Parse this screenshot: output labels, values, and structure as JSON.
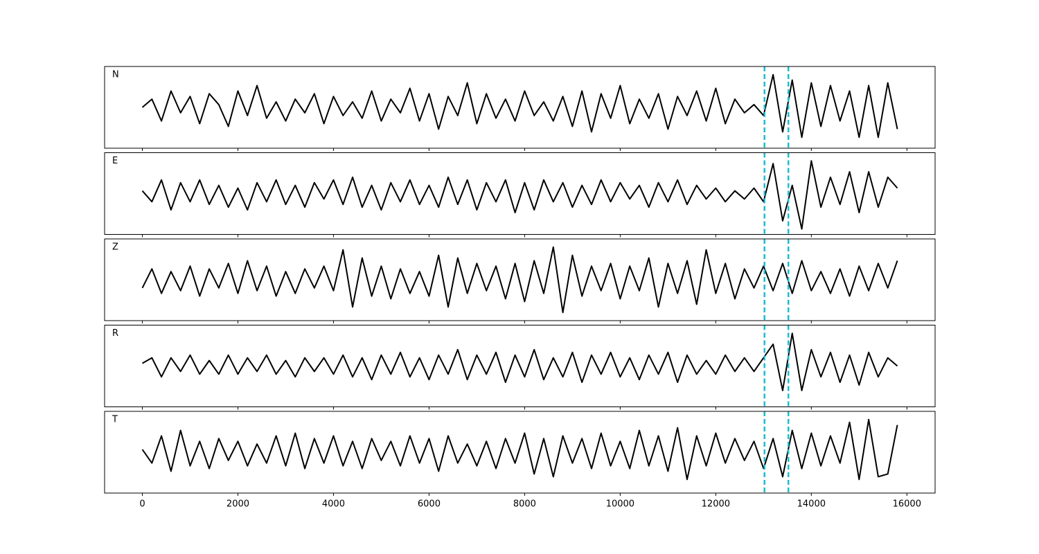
{
  "chart_data": {
    "type": "line",
    "subplots": true,
    "x": [
      0,
      200,
      400,
      600,
      800,
      1000,
      1200,
      1400,
      1600,
      1800,
      2000,
      2200,
      2400,
      2600,
      2800,
      3000,
      3200,
      3400,
      3600,
      3800,
      4000,
      4200,
      4400,
      4600,
      4800,
      5000,
      5200,
      5400,
      5600,
      5800,
      6000,
      6200,
      6400,
      6600,
      6800,
      7000,
      7200,
      7400,
      7600,
      7800,
      8000,
      8200,
      8400,
      8600,
      8800,
      9000,
      9200,
      9400,
      9600,
      9800,
      10000,
      10200,
      10400,
      10600,
      10800,
      11000,
      11200,
      11400,
      11600,
      11800,
      12000,
      12200,
      12400,
      12600,
      12800,
      13000,
      13200,
      13400,
      13600,
      13800,
      14000,
      14200,
      14400,
      14600,
      14800,
      15000,
      15200,
      15400,
      15600,
      15800
    ],
    "series": [
      {
        "name": "N",
        "color": "#000000",
        "values": [
          0.0,
          0.3,
          -0.5,
          0.6,
          -0.2,
          0.4,
          -0.6,
          0.5,
          0.1,
          -0.7,
          0.6,
          -0.3,
          0.8,
          -0.4,
          0.2,
          -0.5,
          0.3,
          -0.2,
          0.5,
          -0.6,
          0.4,
          -0.3,
          0.2,
          -0.4,
          0.6,
          -0.5,
          0.3,
          -0.2,
          0.7,
          -0.5,
          0.5,
          -0.8,
          0.4,
          -0.3,
          0.9,
          -0.6,
          0.5,
          -0.4,
          0.3,
          -0.5,
          0.6,
          -0.3,
          0.2,
          -0.5,
          0.4,
          -0.7,
          0.6,
          -0.9,
          0.5,
          -0.4,
          0.8,
          -0.6,
          0.3,
          -0.4,
          0.5,
          -0.8,
          0.4,
          -0.3,
          0.6,
          -0.5,
          0.7,
          -0.6,
          0.3,
          -0.2,
          0.1,
          -0.3,
          1.2,
          -0.9,
          1.0,
          -1.1,
          0.9,
          -0.7,
          0.8,
          -0.5,
          0.6,
          -1.1,
          0.8,
          -1.1,
          0.9,
          -0.8
        ]
      },
      {
        "name": "E",
        "color": "#000000",
        "values": [
          0.1,
          -0.3,
          0.5,
          -0.6,
          0.4,
          -0.3,
          0.5,
          -0.4,
          0.3,
          -0.5,
          0.2,
          -0.6,
          0.4,
          -0.3,
          0.5,
          -0.4,
          0.3,
          -0.5,
          0.4,
          -0.2,
          0.5,
          -0.4,
          0.6,
          -0.5,
          0.3,
          -0.6,
          0.4,
          -0.3,
          0.5,
          -0.4,
          0.3,
          -0.5,
          0.6,
          -0.4,
          0.5,
          -0.6,
          0.4,
          -0.3,
          0.5,
          -0.7,
          0.4,
          -0.6,
          0.5,
          -0.3,
          0.4,
          -0.5,
          0.3,
          -0.4,
          0.5,
          -0.3,
          0.4,
          -0.2,
          0.3,
          -0.5,
          0.4,
          -0.3,
          0.5,
          -0.4,
          0.3,
          -0.2,
          0.2,
          -0.3,
          0.1,
          -0.2,
          0.2,
          -0.3,
          1.1,
          -1.0,
          0.3,
          -1.3,
          1.2,
          -0.5,
          0.6,
          -0.4,
          0.8,
          -0.7,
          0.8,
          -0.5,
          0.6,
          0.2
        ]
      },
      {
        "name": "Z",
        "color": "#000000",
        "values": [
          -0.3,
          0.4,
          -0.5,
          0.3,
          -0.4,
          0.5,
          -0.6,
          0.4,
          -0.3,
          0.6,
          -0.5,
          0.7,
          -0.4,
          0.5,
          -0.6,
          0.3,
          -0.5,
          0.4,
          -0.3,
          0.5,
          -0.4,
          1.1,
          -1.0,
          0.8,
          -0.6,
          0.5,
          -0.7,
          0.4,
          -0.5,
          0.3,
          -0.6,
          0.9,
          -1.0,
          0.8,
          -0.5,
          0.6,
          -0.4,
          0.5,
          -0.7,
          0.6,
          -0.8,
          0.7,
          -0.5,
          1.2,
          -1.2,
          0.9,
          -0.6,
          0.5,
          -0.4,
          0.6,
          -0.7,
          0.5,
          -0.4,
          0.8,
          -1.0,
          0.6,
          -0.5,
          0.7,
          -0.9,
          1.1,
          -0.5,
          0.6,
          -0.7,
          0.4,
          -0.3,
          0.5,
          -0.4,
          0.6,
          -0.5,
          0.7,
          -0.4,
          0.3,
          -0.5,
          0.4,
          -0.6,
          0.5,
          -0.4,
          0.6,
          -0.3,
          0.7
        ]
      },
      {
        "name": "R",
        "color": "#000000",
        "values": [
          0.1,
          0.3,
          -0.4,
          0.3,
          -0.2,
          0.4,
          -0.3,
          0.2,
          -0.3,
          0.4,
          -0.3,
          0.3,
          -0.2,
          0.4,
          -0.3,
          0.2,
          -0.4,
          0.3,
          -0.2,
          0.3,
          -0.3,
          0.4,
          -0.4,
          0.3,
          -0.5,
          0.4,
          -0.3,
          0.5,
          -0.4,
          0.3,
          -0.5,
          0.4,
          -0.3,
          0.6,
          -0.5,
          0.4,
          -0.3,
          0.5,
          -0.6,
          0.4,
          -0.4,
          0.6,
          -0.5,
          0.3,
          -0.4,
          0.5,
          -0.6,
          0.4,
          -0.3,
          0.5,
          -0.4,
          0.3,
          -0.5,
          0.4,
          -0.3,
          0.5,
          -0.6,
          0.4,
          -0.3,
          0.2,
          -0.3,
          0.4,
          -0.2,
          0.3,
          -0.2,
          0.3,
          0.8,
          -0.9,
          1.2,
          -0.9,
          0.6,
          -0.4,
          0.5,
          -0.6,
          0.4,
          -0.7,
          0.5,
          -0.4,
          0.3,
          0.0
        ]
      },
      {
        "name": "T",
        "color": "#000000",
        "values": [
          0.1,
          -0.4,
          0.6,
          -0.7,
          0.8,
          -0.5,
          0.4,
          -0.6,
          0.5,
          -0.3,
          0.4,
          -0.5,
          0.3,
          -0.4,
          0.6,
          -0.5,
          0.7,
          -0.6,
          0.5,
          -0.4,
          0.6,
          -0.5,
          0.4,
          -0.6,
          0.5,
          -0.3,
          0.4,
          -0.5,
          0.6,
          -0.4,
          0.5,
          -0.7,
          0.6,
          -0.4,
          0.3,
          -0.5,
          0.4,
          -0.6,
          0.5,
          -0.4,
          0.7,
          -0.8,
          0.5,
          -0.9,
          0.6,
          -0.4,
          0.5,
          -0.6,
          0.7,
          -0.5,
          0.4,
          -0.6,
          0.8,
          -0.5,
          0.6,
          -0.7,
          0.9,
          -1.0,
          0.6,
          -0.5,
          0.7,
          -0.4,
          0.5,
          -0.3,
          0.4,
          -0.6,
          0.5,
          -0.9,
          0.8,
          -0.6,
          0.7,
          -0.5,
          0.6,
          -0.4,
          1.1,
          -1.0,
          1.2,
          -0.9,
          -0.8,
          1.0
        ]
      }
    ],
    "xlim": [
      -790,
      16590
    ],
    "xticks": [
      0,
      2000,
      4000,
      6000,
      8000,
      10000,
      12000,
      14000,
      16000
    ],
    "ylim": [
      -1.5,
      1.5
    ],
    "vlines": [
      13020,
      13520
    ],
    "vline_color": "#17becf"
  }
}
